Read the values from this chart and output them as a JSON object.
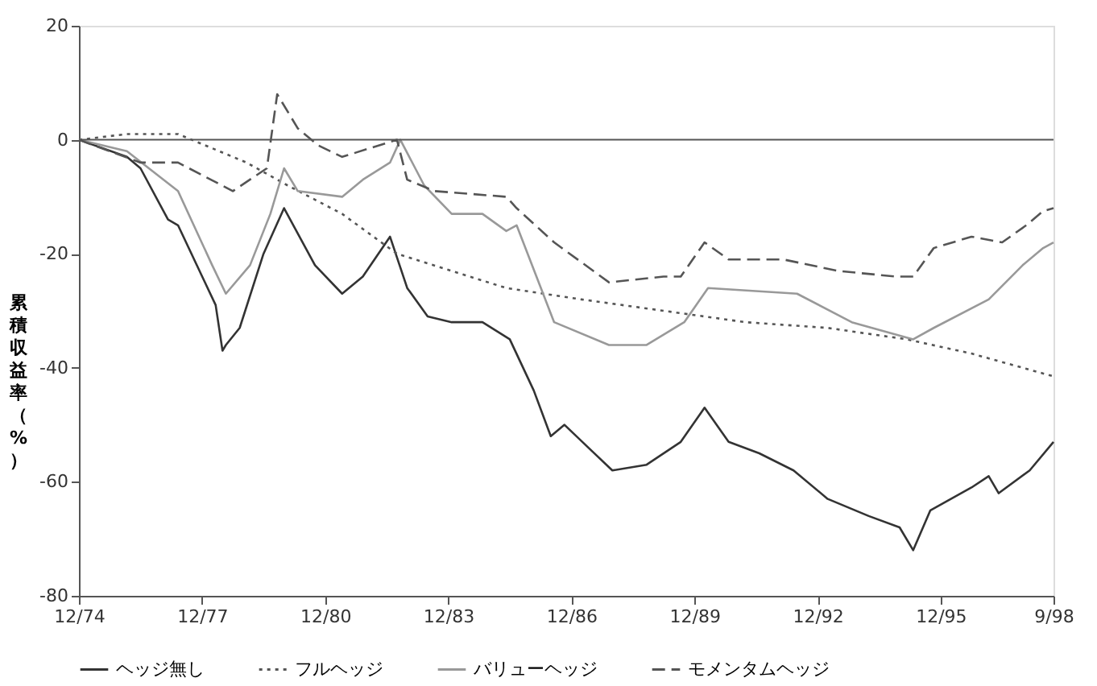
{
  "chart_data": {
    "type": "line",
    "ylabel": "累積収益率（%）",
    "xlim": [
      "1974-12",
      "1998-09"
    ],
    "xticks": [
      {
        "value": "1974-12",
        "label": "12/74"
      },
      {
        "value": "1977-12",
        "label": "12/77"
      },
      {
        "value": "1980-12",
        "label": "12/80"
      },
      {
        "value": "1983-12",
        "label": "12/83"
      },
      {
        "value": "1986-12",
        "label": "12/86"
      },
      {
        "value": "1989-12",
        "label": "12/89"
      },
      {
        "value": "1992-12",
        "label": "12/92"
      },
      {
        "value": "1995-12",
        "label": "12/95"
      },
      {
        "value": "1998-09",
        "label": "9/98"
      }
    ],
    "ylim": [
      -80,
      20
    ],
    "yticks": [
      -80,
      -60,
      -40,
      -20,
      0,
      20
    ],
    "grid": false,
    "legend": "bottom",
    "ref_lines": [
      {
        "axis": "y",
        "value": 0,
        "color": "#555555"
      }
    ],
    "series": [
      {
        "name": "ヘッジ無し",
        "color": "#333333",
        "line_style": "solid",
        "x": [
          "1974-12",
          "1976-02",
          "1976-06",
          "1977-02",
          "1977-05",
          "1978-04",
          "1978-06",
          "1978-07",
          "1978-11",
          "1979-06",
          "1979-12",
          "1980-09",
          "1981-05",
          "1981-11",
          "1982-07",
          "1982-12",
          "1983-06",
          "1984-01",
          "1984-10",
          "1985-06",
          "1986-01",
          "1986-06",
          "1986-10",
          "1987-05",
          "1987-12",
          "1988-10",
          "1989-08",
          "1990-03",
          "1990-10",
          "1991-07",
          "1992-05",
          "1993-03",
          "1994-03",
          "1994-12",
          "1995-04",
          "1995-09",
          "1996-09",
          "1997-02",
          "1997-05",
          "1998-02",
          "1998-09"
        ],
        "values": [
          0,
          -3,
          -5,
          -14,
          -15,
          -29,
          -37,
          -36,
          -33,
          -20,
          -12,
          -22,
          -27,
          -24,
          -17,
          -26,
          -31,
          -32,
          -32,
          -35,
          -44,
          -52,
          -50,
          -54,
          -58,
          -57,
          -53,
          -47,
          -53,
          -55,
          -58,
          -63,
          -66,
          -68,
          -72,
          -65,
          -61,
          -59,
          -62,
          -58,
          -53
        ]
      },
      {
        "name": "フルヘッジ",
        "color": "#555555",
        "line_style": "dotted",
        "x": [
          "1974-12",
          "1976-02",
          "1977-05",
          "1978-01",
          "1979-01",
          "1980-01",
          "1981-05",
          "1982-09",
          "1984-01",
          "1985-05",
          "1987-03",
          "1989-03",
          "1991-03",
          "1993-03",
          "1995-02",
          "1996-09",
          "1998-09"
        ],
        "values": [
          0,
          1,
          1,
          -1,
          -4,
          -8,
          -13,
          -20,
          -23,
          -26,
          -28,
          -30,
          -32,
          -33,
          -35,
          -37.5,
          -41.5
        ]
      },
      {
        "name": "バリューヘッジ",
        "color": "#999999",
        "line_style": "solid",
        "x": [
          "1974-12",
          "1976-02",
          "1977-05",
          "1978-03",
          "1978-07",
          "1979-02",
          "1979-08",
          "1979-12",
          "1980-04",
          "1981-05",
          "1981-11",
          "1982-07",
          "1982-10",
          "1983-05",
          "1984-01",
          "1984-10",
          "1985-05",
          "1985-08",
          "1986-07",
          "1987-11",
          "1988-10",
          "1989-09",
          "1990-04",
          "1992-06",
          "1993-10",
          "1995-04",
          "1995-10",
          "1997-02",
          "1997-12",
          "1998-06",
          "1998-09"
        ],
        "values": [
          0,
          -2,
          -9,
          -22,
          -27,
          -22,
          -13,
          -5,
          -9,
          -10,
          -7,
          -4,
          0,
          -8,
          -13,
          -13,
          -16,
          -15,
          -32,
          -36,
          -36,
          -32,
          -26,
          -27,
          -32,
          -35,
          -33,
          -28,
          -22,
          -19,
          -18
        ]
      },
      {
        "name": "モメンタムヘッジ",
        "color": "#555555",
        "line_style": "dashed",
        "x": [
          "1974-12",
          "1976-06",
          "1977-05",
          "1978-09",
          "1979-07",
          "1979-10",
          "1980-04",
          "1980-10",
          "1981-05",
          "1982-09",
          "1982-12",
          "1983-08",
          "1985-05",
          "1985-08",
          "1986-07",
          "1987-11",
          "1989-03",
          "1989-08",
          "1990-03",
          "1990-10",
          "1992-02",
          "1993-06",
          "1994-11",
          "1995-04",
          "1995-10",
          "1996-09",
          "1997-06",
          "1998-01",
          "1998-06",
          "1998-09"
        ],
        "values": [
          0,
          -4,
          -4,
          -9,
          -5,
          8,
          2,
          -1,
          -3,
          0,
          -7,
          -9,
          -10,
          -12,
          -18,
          -25,
          -24,
          -24,
          -18,
          -21,
          -21,
          -23,
          -24,
          -24,
          -19,
          -17,
          -18,
          -15,
          -12.5,
          -12
        ]
      }
    ]
  }
}
